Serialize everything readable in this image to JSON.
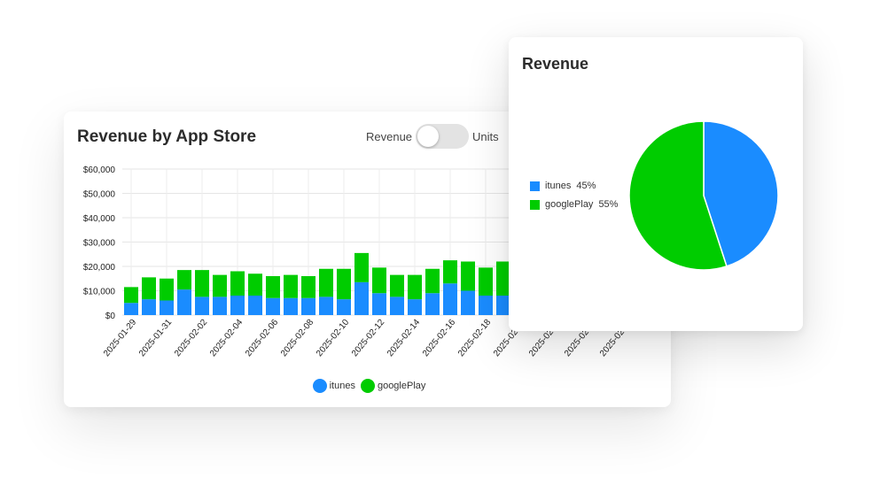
{
  "bar_card": {
    "title": "Revenue by App Store",
    "toggle": {
      "left_label": "Revenue",
      "right_label": "Units"
    },
    "legend": [
      {
        "name": "itunes",
        "color": "#1a8cff"
      },
      {
        "name": "googlePlay",
        "color": "#00cc00"
      }
    ]
  },
  "pie_card": {
    "title": "Revenue",
    "legend": [
      {
        "name": "itunes",
        "pct": "45%",
        "color": "#1a8cff"
      },
      {
        "name": "googlePlay",
        "pct": "55%",
        "color": "#00cc00"
      }
    ]
  },
  "chart_data": [
    {
      "type": "bar",
      "stacked": true,
      "title": "Revenue by App Store",
      "x": [
        "2025-01-29",
        "2025-01-30",
        "2025-01-31",
        "2025-02-01",
        "2025-02-02",
        "2025-02-03",
        "2025-02-04",
        "2025-02-05",
        "2025-02-06",
        "2025-02-07",
        "2025-02-08",
        "2025-02-09",
        "2025-02-10",
        "2025-02-11",
        "2025-02-12",
        "2025-02-13",
        "2025-02-14",
        "2025-02-15",
        "2025-02-16",
        "2025-02-17",
        "2025-02-18",
        "2025-02-19"
      ],
      "x_tick_labels": [
        "2025-01-29",
        "2025-01-31",
        "2025-02-02",
        "2025-02-04",
        "2025-02-06",
        "2025-02-08",
        "2025-02-10",
        "2025-02-12",
        "2025-02-14",
        "2025-02-16",
        "2025-02-18",
        "2025-02-20",
        "2025-02-22",
        "2025-02-24",
        "2025-02-26"
      ],
      "y_tick_labels": [
        "$0",
        "$10,000",
        "$20,000",
        "$30,000",
        "$40,000",
        "$50,000",
        "$60,000"
      ],
      "ylim": [
        0,
        60000
      ],
      "grid": true,
      "legend_position": "bottom",
      "series": [
        {
          "name": "itunes",
          "color": "#1a8cff",
          "values": [
            5000,
            6500,
            6000,
            10500,
            7500,
            7500,
            8000,
            8000,
            7000,
            7000,
            7000,
            7500,
            6500,
            13500,
            9000,
            7500,
            6500,
            9000,
            13000,
            10000,
            8000,
            8000
          ]
        },
        {
          "name": "googlePlay",
          "color": "#00cc00",
          "values": [
            6500,
            9000,
            9000,
            8000,
            11000,
            9000,
            10000,
            9000,
            9000,
            9500,
            9000,
            11500,
            12500,
            12000,
            10500,
            9000,
            10000,
            10000,
            9500,
            12000,
            11500,
            14000
          ]
        }
      ]
    },
    {
      "type": "pie",
      "title": "Revenue",
      "categories": [
        "itunes",
        "googlePlay"
      ],
      "values": [
        45,
        55
      ],
      "colors": [
        "#1a8cff",
        "#00cc00"
      ],
      "legend_position": "left"
    }
  ]
}
